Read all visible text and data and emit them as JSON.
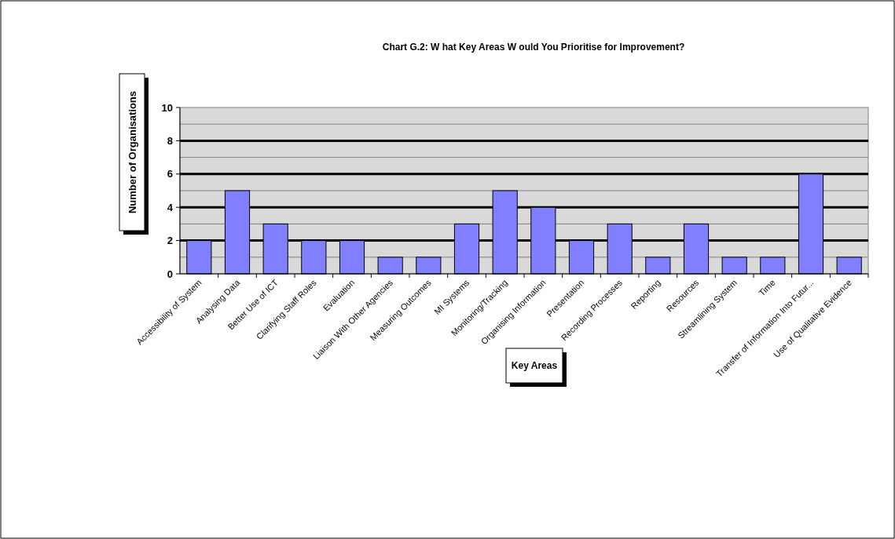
{
  "chart_data": {
    "type": "bar",
    "title": "Chart G.2:  W hat Key Areas W ould You Prioritise for Improvement?",
    "xlabel": "Key Areas",
    "ylabel": "Number of Organisations",
    "categories": [
      "Accessibility of System",
      "Analysing Data",
      "Better Use of ICT",
      "Clarifying Staff Roles",
      "Evaluation",
      "Liaison With Other Agencies",
      "Measuring Outcomes",
      "MI Systems",
      "Monitoring/Tracking",
      "Organising Information",
      "Presentation",
      "Recording Processes",
      "Reporting",
      "Resources",
      "Streamlining System",
      "Time",
      "Transfer of Information Into Futur...",
      "Use of Qualitative Evidence"
    ],
    "values": [
      2,
      5,
      3,
      2,
      2,
      1,
      1,
      3,
      5,
      4,
      2,
      3,
      1,
      3,
      1,
      1,
      6,
      1
    ],
    "color": "#8080ff",
    "ylim": [
      0,
      10
    ],
    "yticks": [
      0,
      2,
      4,
      6,
      8,
      10
    ],
    "grid": "y"
  }
}
